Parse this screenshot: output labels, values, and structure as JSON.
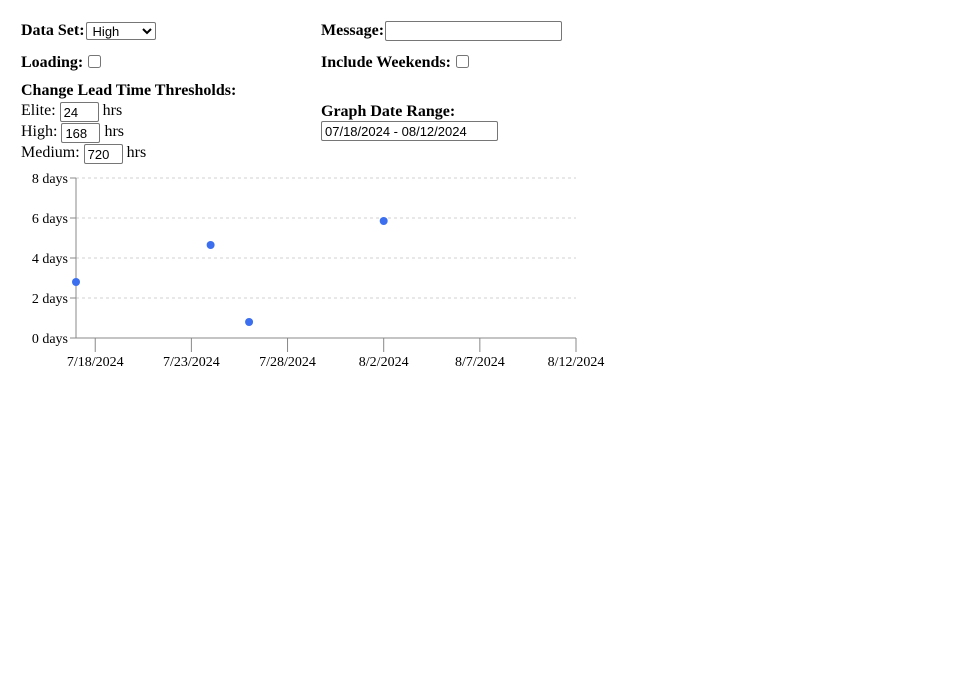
{
  "controls": {
    "data_set": {
      "label": "Data Set:",
      "selected": "High",
      "options": [
        "High"
      ]
    },
    "message": {
      "label": "Message:",
      "value": ""
    },
    "loading": {
      "label": "Loading:",
      "checked": false
    },
    "include_weekends": {
      "label": "Include Weekends:",
      "checked": false
    },
    "thresholds": {
      "title": "Change Lead Time Thresholds:",
      "unit": "hrs",
      "elite": {
        "label": "Elite:",
        "value": "24"
      },
      "high": {
        "label": "High:",
        "value": "168"
      },
      "medium": {
        "label": "Medium:",
        "value": "720"
      }
    },
    "date_range": {
      "label": "Graph Date Range:",
      "value": "07/18/2024 - 08/12/2024"
    }
  },
  "chart_data": {
    "type": "scatter",
    "y_unit": "days",
    "ylim": [
      0,
      8
    ],
    "y_ticks": [
      "0 days",
      "2 days",
      "4 days",
      "6 days",
      "8 days"
    ],
    "y_tick_values": [
      0,
      2,
      4,
      6,
      8
    ],
    "x_ticks": [
      "7/18/2024",
      "7/23/2024",
      "7/28/2024",
      "8/2/2024",
      "8/7/2024",
      "8/12/2024"
    ],
    "x_tick_dates": [
      "2024-07-18",
      "2024-07-23",
      "2024-07-28",
      "2024-08-02",
      "2024-08-07",
      "2024-08-12"
    ],
    "xlim": [
      "2024-07-17",
      "2024-08-12"
    ],
    "points": [
      {
        "x": "2024-07-17",
        "y": 2.8
      },
      {
        "x": "2024-07-24",
        "y": 4.65
      },
      {
        "x": "2024-07-26",
        "y": 0.8
      },
      {
        "x": "2024-08-02",
        "y": 5.85
      }
    ],
    "grid": true,
    "point_color": "#3b6ff0",
    "grid_color": "#d0d0d0",
    "axis_color": "#888888"
  }
}
